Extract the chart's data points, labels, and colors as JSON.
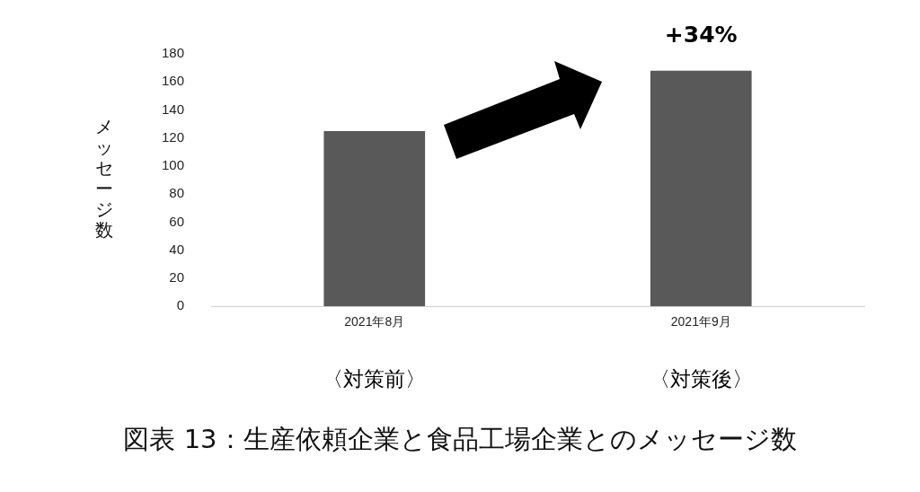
{
  "chart_data": {
    "type": "bar",
    "title": "図表 13：生産依頼企業と食品工場企業とのメッセージ数",
    "ylabel": "メッセージ数",
    "categories": [
      "2021年8月",
      "2021年9月"
    ],
    "values": [
      125,
      168
    ],
    "color": "#595959",
    "ylim": [
      0,
      180
    ],
    "yticks": [
      0,
      20,
      40,
      60,
      80,
      100,
      120,
      140,
      160,
      180
    ],
    "grid": false,
    "legend": false,
    "annotations": [
      "〈対策前〉",
      "〈対策後〉",
      {
        "text": "+34%",
        "x": "2021年9月",
        "y": 168
      }
    ]
  }
}
